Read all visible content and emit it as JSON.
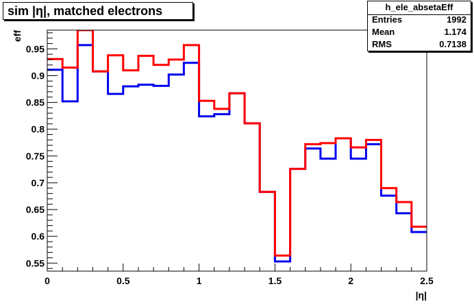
{
  "title": "sim |η|, matched electrons",
  "stats": {
    "name": "h_ele_absetaEff",
    "rows": [
      {
        "label": "Entries",
        "value": "1992"
      },
      {
        "label": "Mean",
        "value": "1.174"
      },
      {
        "label": "RMS",
        "value": "0.7138"
      }
    ]
  },
  "chart_data": {
    "type": "line",
    "xlabel": "|η|",
    "ylabel": "eff",
    "xlim": [
      0,
      2.5
    ],
    "ylim": [
      0.535,
      0.985
    ],
    "x_ticks": [
      "0",
      "0.5",
      "1",
      "1.5",
      "2",
      "2.5"
    ],
    "y_ticks": [
      "0.55",
      "0.6",
      "0.65",
      "0.7",
      "0.75",
      "0.8",
      "0.85",
      "0.9",
      "0.95"
    ],
    "bin_edges": [
      0,
      0.1,
      0.2,
      0.3,
      0.4,
      0.5,
      0.6,
      0.7,
      0.8,
      0.9,
      1.0,
      1.1,
      1.2,
      1.3,
      1.4,
      1.5,
      1.6,
      1.7,
      1.8,
      1.9,
      2.0,
      2.1,
      2.2,
      2.3,
      2.4,
      2.5
    ],
    "series": [
      {
        "color": "#0000ee",
        "values": [
          0.911,
          0.852,
          0.957,
          0.908,
          0.866,
          0.88,
          0.883,
          0.881,
          0.902,
          0.924,
          0.824,
          0.828,
          0.867,
          0.811,
          0.683,
          0.553,
          0.726,
          0.764,
          0.745,
          0.783,
          0.745,
          0.772,
          0.676,
          0.643,
          0.608
        ]
      },
      {
        "color": "#ff0000",
        "values": [
          0.931,
          0.915,
          0.985,
          0.908,
          0.938,
          0.91,
          0.937,
          0.92,
          0.93,
          0.957,
          0.853,
          0.838,
          0.867,
          0.811,
          0.683,
          0.564,
          0.726,
          0.772,
          0.774,
          0.783,
          0.766,
          0.78,
          0.69,
          0.664,
          0.618
        ]
      }
    ]
  }
}
